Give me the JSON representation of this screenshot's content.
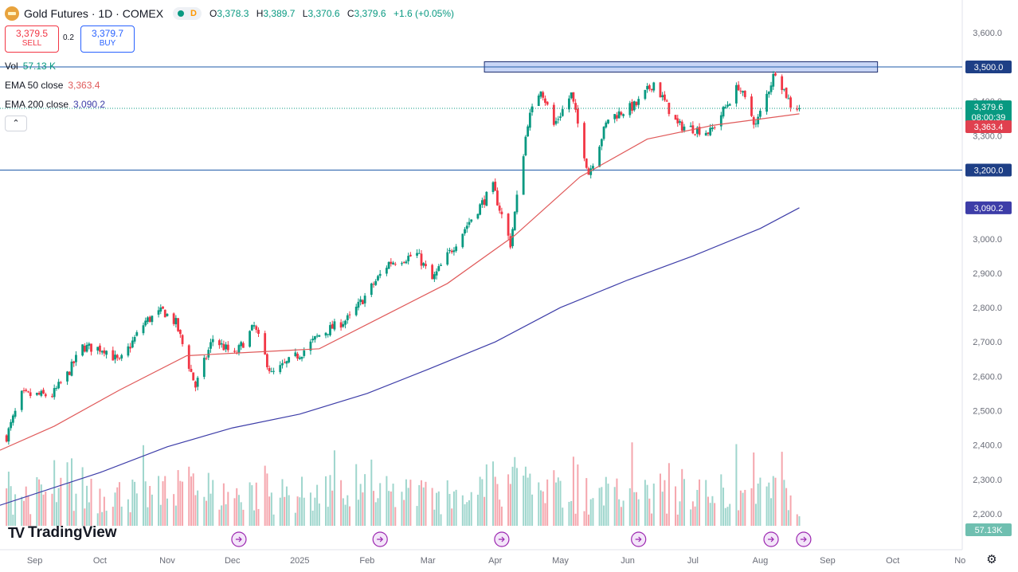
{
  "header": {
    "title": "Gold Futures · 1D · COMEX",
    "badge_d": "D",
    "ohlc": [
      {
        "label": "O",
        "value": "3,378.3"
      },
      {
        "label": "H",
        "value": "3,389.7"
      },
      {
        "label": "L",
        "value": "3,370.6"
      },
      {
        "label": "C",
        "value": "3,379.6"
      }
    ],
    "change": "+1.6 (+0.05%)"
  },
  "trade": {
    "sell_price": "3,379.5",
    "sell_label": "SELL",
    "spread": "0.2",
    "buy_price": "3,379.7",
    "buy_label": "BUY"
  },
  "legend": {
    "vol_label": "Vol",
    "vol_value": "57.13 K",
    "ema50_label": "EMA 50 close",
    "ema50_value": "3,363.4",
    "ema200_label": "EMA 200 close",
    "ema200_value": "3,090.2",
    "collapse_glyph": "⌃"
  },
  "brand": {
    "mark": "TV",
    "text": "TradingView"
  },
  "settings_glyph": "⚙",
  "colors": {
    "up": "#089981",
    "down": "#f23645",
    "ema50": "#e05a5a",
    "ema200": "#3d3da8",
    "hline": "#1e5aa8",
    "zone_fill": "#c9d6f6"
  },
  "chart_data": {
    "type": "candlestick",
    "price_axis": {
      "ticks": [
        2200,
        2300,
        2400,
        2500,
        2600,
        2700,
        2800,
        2900,
        3000,
        3100,
        3200,
        3300,
        3400,
        3500,
        3600
      ],
      "tick_labels": [
        "2,200.0",
        "2,300.0",
        "2,400.0",
        "2,500.0",
        "2,600.0",
        "2,700.0",
        "2,800.0",
        "2,900.0",
        "3,000.0",
        "3,100.0",
        "3,200.0",
        "3,300.0",
        "3,400.0",
        "3,500.0",
        "3,600.0"
      ]
    },
    "time_axis": {
      "labels": [
        "Sep",
        "Oct",
        "Nov",
        "Dec",
        "2025",
        "Feb",
        "Mar",
        "Apr",
        "May",
        "Jun",
        "Jul",
        "Aug",
        "Sep",
        "Oct",
        "No"
      ],
      "dates": [
        "2024-09-01",
        "2024-10-01",
        "2024-11-01",
        "2024-12-01",
        "2025-01-01",
        "2025-02-01",
        "2025-03-01",
        "2025-04-01",
        "2025-05-01",
        "2025-06-01",
        "2025-07-01",
        "2025-08-01",
        "2025-09-01",
        "2025-10-01",
        "2025-11-01"
      ],
      "start": "2024-08-16",
      "end": "2025-11-02"
    },
    "price_labels": [
      {
        "name": "resistance",
        "text": "3,500.0",
        "value": 3500
      },
      {
        "name": "last-price",
        "text": "3,379.6",
        "value": 3379.6,
        "countdown": "08:00:39"
      },
      {
        "name": "ema50",
        "text": "3,363.4",
        "value": 3363.4
      },
      {
        "name": "support",
        "text": "3,200.0",
        "value": 3200
      },
      {
        "name": "ema200",
        "text": "3,090.2",
        "value": 3090.2
      },
      {
        "name": "volume",
        "text": "57.13K"
      }
    ],
    "horizontal_lines": [
      3500,
      3200
    ],
    "resistance_zone": {
      "start": "2025-03-27",
      "end": "2025-09-24",
      "low": 3485,
      "high": 3515
    },
    "close_keypoints": [
      [
        "2024-08-19",
        2425
      ],
      [
        "2024-08-26",
        2545
      ],
      [
        "2024-09-09",
        2545
      ],
      [
        "2024-09-16",
        2605
      ],
      [
        "2024-09-23",
        2685
      ],
      [
        "2024-10-03",
        2680
      ],
      [
        "2024-10-10",
        2640
      ],
      [
        "2024-10-22",
        2760
      ],
      [
        "2024-10-30",
        2790
      ],
      [
        "2024-11-05",
        2755
      ],
      [
        "2024-11-14",
        2570
      ],
      [
        "2024-11-22",
        2710
      ],
      [
        "2024-12-02",
        2660
      ],
      [
        "2024-12-11",
        2745
      ],
      [
        "2024-12-19",
        2605
      ],
      [
        "2025-01-02",
        2670
      ],
      [
        "2025-01-10",
        2720
      ],
      [
        "2025-01-24",
        2770
      ],
      [
        "2025-02-11",
        2930
      ],
      [
        "2025-02-24",
        2955
      ],
      [
        "2025-03-03",
        2880
      ],
      [
        "2025-03-20",
        3050
      ],
      [
        "2025-03-31",
        3150
      ],
      [
        "2025-04-08",
        2985
      ],
      [
        "2025-04-16",
        3340
      ],
      [
        "2025-04-22",
        3440
      ],
      [
        "2025-04-28",
        3330
      ],
      [
        "2025-05-06",
        3420
      ],
      [
        "2025-05-14",
        3190
      ],
      [
        "2025-05-23",
        3350
      ],
      [
        "2025-06-05",
        3390
      ],
      [
        "2025-06-13",
        3455
      ],
      [
        "2025-06-24",
        3330
      ],
      [
        "2025-07-09",
        3310
      ],
      [
        "2025-07-22",
        3445
      ],
      [
        "2025-07-30",
        3330
      ],
      [
        "2025-08-08",
        3490
      ],
      [
        "2025-08-15",
        3390
      ],
      [
        "2025-08-19",
        3380
      ]
    ],
    "ema50_keypoints": [
      [
        "2024-08-16",
        2385
      ],
      [
        "2024-09-10",
        2455
      ],
      [
        "2024-10-10",
        2560
      ],
      [
        "2024-11-10",
        2660
      ],
      [
        "2024-12-10",
        2670
      ],
      [
        "2025-01-10",
        2680
      ],
      [
        "2025-02-10",
        2780
      ],
      [
        "2025-03-10",
        2870
      ],
      [
        "2025-04-10",
        3010
      ],
      [
        "2025-05-10",
        3180
      ],
      [
        "2025-06-10",
        3290
      ],
      [
        "2025-07-10",
        3330
      ],
      [
        "2025-08-19",
        3363.4
      ]
    ],
    "ema200_keypoints": [
      [
        "2024-08-16",
        2225
      ],
      [
        "2024-10-01",
        2320
      ],
      [
        "2024-11-01",
        2395
      ],
      [
        "2024-12-01",
        2450
      ],
      [
        "2025-01-01",
        2490
      ],
      [
        "2025-02-01",
        2550
      ],
      [
        "2025-03-01",
        2620
      ],
      [
        "2025-04-01",
        2700
      ],
      [
        "2025-05-01",
        2800
      ],
      [
        "2025-06-01",
        2880
      ],
      [
        "2025-07-01",
        2950
      ],
      [
        "2025-08-01",
        3030
      ],
      [
        "2025-08-19",
        3090.2
      ]
    ],
    "volume_range_K": [
      40,
      240
    ],
    "last_volume_K": 57.13,
    "event_markers": [
      "2024-12-04",
      "2025-02-07",
      "2025-04-04",
      "2025-06-06",
      "2025-08-06",
      "2025-08-21"
    ]
  }
}
